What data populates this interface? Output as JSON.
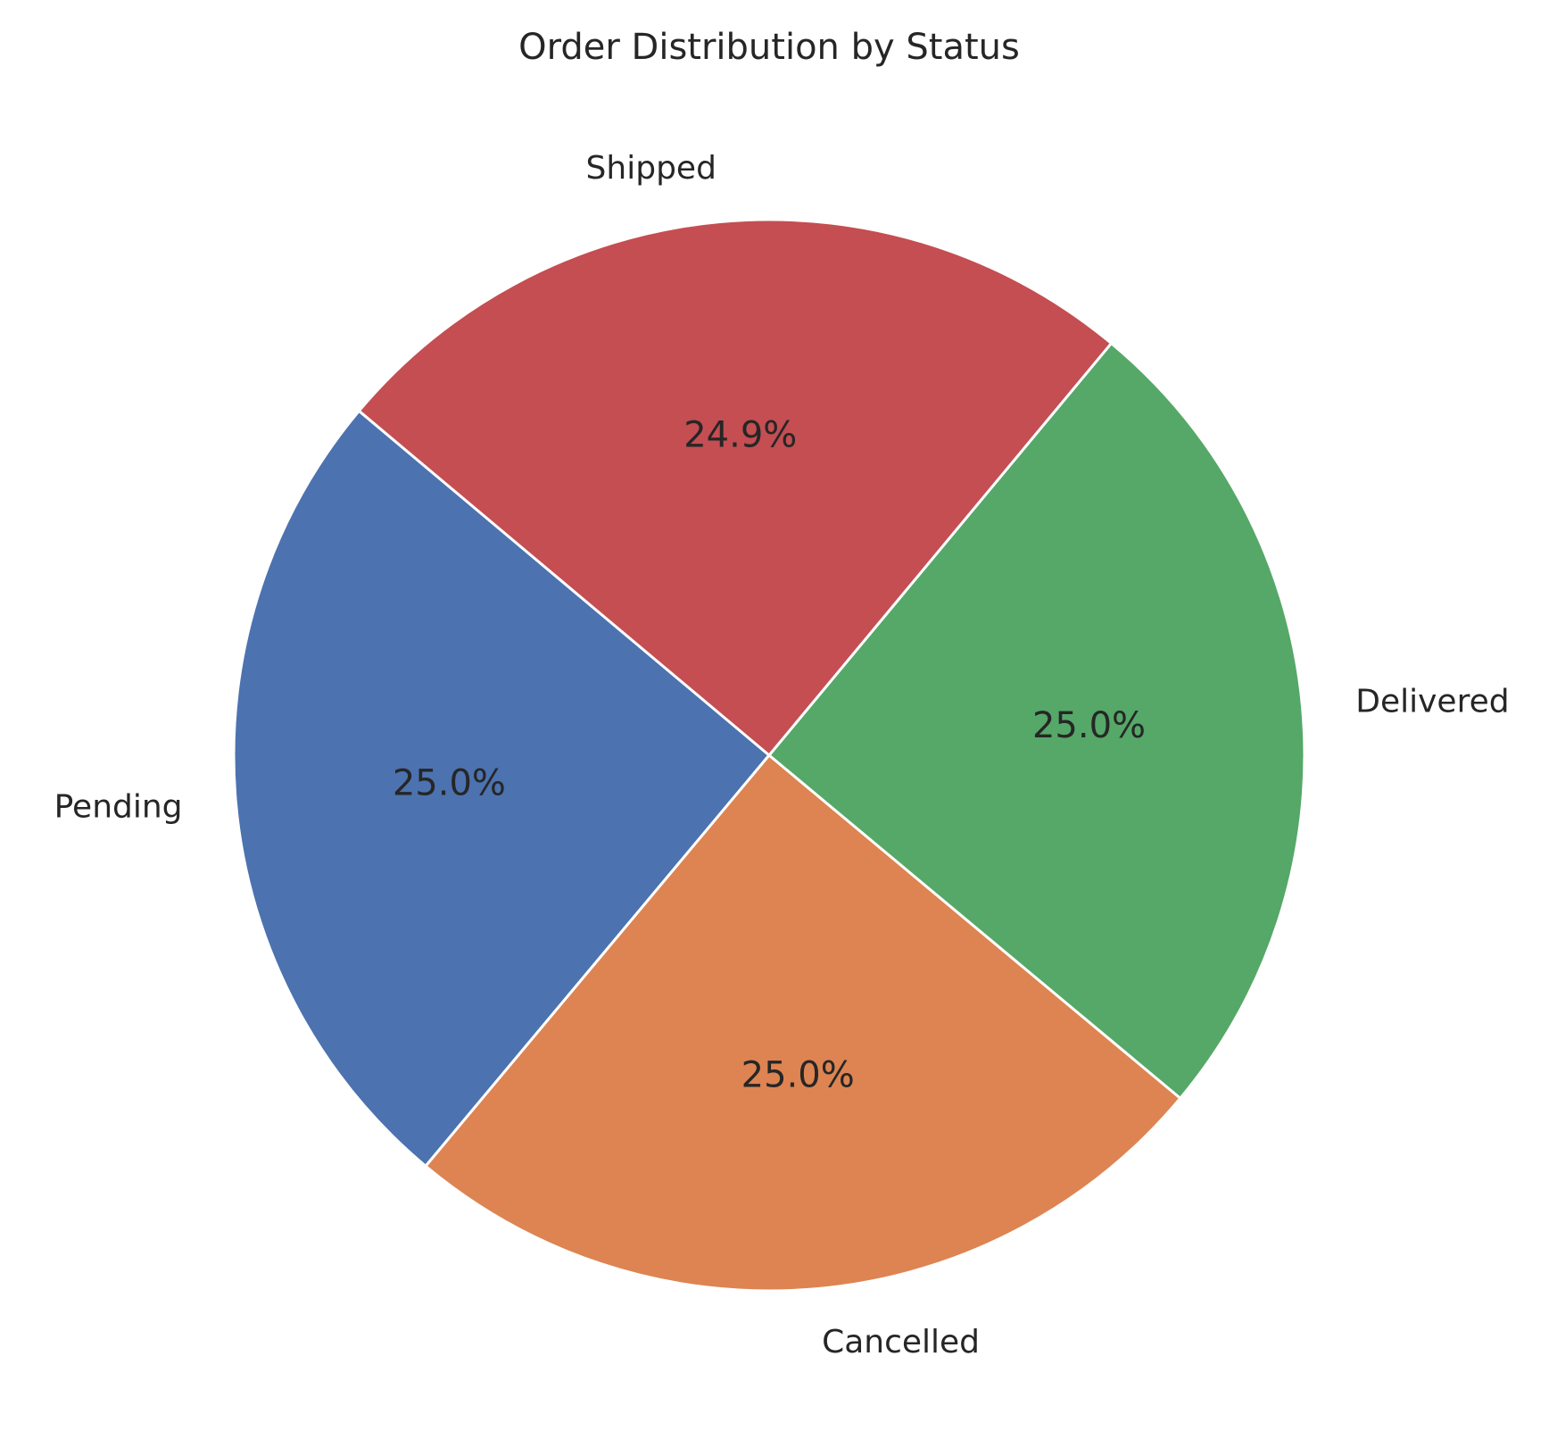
{
  "chart_data": {
    "type": "pie",
    "title": "Order Distribution by Status",
    "start_angle_deg": 140,
    "direction": "counterclockwise",
    "slices": [
      {
        "label": "Pending",
        "value": 25.0,
        "pct_label": "25.0%",
        "color": "#4c72b0"
      },
      {
        "label": "Cancelled",
        "value": 25.0,
        "pct_label": "25.0%",
        "color": "#dd8452"
      },
      {
        "label": "Delivered",
        "value": 25.0,
        "pct_label": "25.0%",
        "color": "#55a868"
      },
      {
        "label": "Shipped",
        "value": 24.9,
        "pct_label": "24.9%",
        "color": "#c44e52"
      }
    ]
  }
}
